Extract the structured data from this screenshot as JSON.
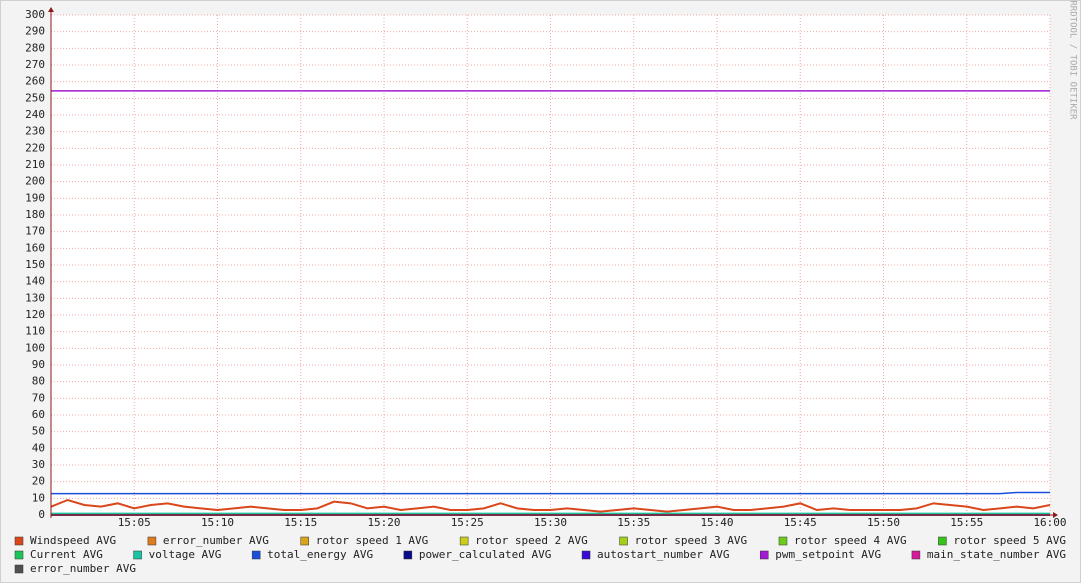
{
  "chart_data": {
    "type": "line",
    "watermark": "RRDTOOL / TOBI OETIKER",
    "xlim": [
      "15:00",
      "16:00"
    ],
    "xticks": [
      "15:05",
      "15:10",
      "15:15",
      "15:20",
      "15:25",
      "15:30",
      "15:35",
      "15:40",
      "15:45",
      "15:50",
      "15:55",
      "16:00"
    ],
    "ylim": [
      0,
      300
    ],
    "yticks": [
      0,
      10,
      20,
      30,
      40,
      50,
      60,
      70,
      80,
      90,
      100,
      110,
      120,
      130,
      140,
      150,
      160,
      170,
      180,
      190,
      200,
      210,
      220,
      230,
      240,
      250,
      260,
      270,
      280,
      290,
      300
    ],
    "grid": true,
    "series": [
      {
        "name": "Windspeed AVG",
        "color": "#d9471a",
        "x": [
          "15:00",
          "15:01",
          "15:02",
          "15:03",
          "15:04",
          "15:05",
          "15:06",
          "15:07",
          "15:08",
          "15:09",
          "15:10",
          "15:11",
          "15:12",
          "15:13",
          "15:14",
          "15:15",
          "15:16",
          "15:17",
          "15:18",
          "15:19",
          "15:20",
          "15:21",
          "15:22",
          "15:23",
          "15:24",
          "15:25",
          "15:26",
          "15:27",
          "15:28",
          "15:29",
          "15:30",
          "15:31",
          "15:32",
          "15:33",
          "15:34",
          "15:35",
          "15:36",
          "15:37",
          "15:38",
          "15:39",
          "15:40",
          "15:41",
          "15:42",
          "15:43",
          "15:44",
          "15:45",
          "15:46",
          "15:47",
          "15:48",
          "15:49",
          "15:50",
          "15:51",
          "15:52",
          "15:53",
          "15:54",
          "15:55",
          "15:56",
          "15:57",
          "15:58",
          "15:59",
          "16:00"
        ],
        "values": [
          5,
          9,
          6,
          5,
          7,
          4,
          6,
          7,
          5,
          4,
          3,
          4,
          5,
          4,
          3,
          3,
          4,
          8,
          7,
          4,
          5,
          3,
          4,
          5,
          3,
          3,
          4,
          7,
          4,
          3,
          3,
          4,
          3,
          2,
          3,
          4,
          3,
          2,
          3,
          4,
          5,
          3,
          3,
          4,
          5,
          7,
          3,
          4,
          3,
          3,
          3,
          3,
          4,
          7,
          6,
          5,
          3,
          4,
          5,
          4,
          6
        ]
      },
      {
        "name": "error_number AVG",
        "color": "#e07a1f",
        "x": [
          "15:00",
          "16:00"
        ],
        "values": [
          0,
          0
        ]
      },
      {
        "name": "rotor speed 1 AVG",
        "color": "#d9a31a",
        "x": [
          "15:00",
          "16:00"
        ],
        "values": [
          0,
          0
        ]
      },
      {
        "name": "rotor speed 2 AVG",
        "color": "#cccc1a",
        "x": [
          "15:00",
          "16:00"
        ],
        "values": [
          0,
          0
        ]
      },
      {
        "name": "rotor speed 3 AVG",
        "color": "#a3d11a",
        "x": [
          "15:00",
          "16:00"
        ],
        "values": [
          0,
          0
        ]
      },
      {
        "name": "rotor speed 4 AVG",
        "color": "#6ccc1a",
        "x": [
          "15:00",
          "16:00"
        ],
        "values": [
          0,
          0
        ]
      },
      {
        "name": "rotor speed 5 AVG",
        "color": "#36c41a",
        "x": [
          "15:00",
          "16:00"
        ],
        "values": [
          0,
          0
        ]
      },
      {
        "name": "Current AVG",
        "color": "#1ac45a",
        "x": [
          "15:00",
          "16:00"
        ],
        "values": [
          0,
          0
        ]
      },
      {
        "name": "voltage AVG",
        "color": "#1ac4a3",
        "x": [
          "15:00",
          "16:00"
        ],
        "values": [
          1,
          1
        ]
      },
      {
        "name": "total_energy AVG",
        "color": "#1a4fd9",
        "x": [
          "15:00",
          "15:57",
          "15:58",
          "16:00"
        ],
        "values": [
          12.8,
          12.8,
          13.5,
          13.5
        ]
      },
      {
        "name": "power_calculated AVG",
        "color": "#0a0a8a",
        "x": [
          "15:00",
          "16:00"
        ],
        "values": [
          0,
          0
        ]
      },
      {
        "name": "autostart_number AVG",
        "color": "#3a0ad4",
        "x": [
          "15:00",
          "16:00"
        ],
        "values": [
          0,
          0
        ]
      },
      {
        "name": "pwm_setpoint AVG",
        "color": "#a31ad4",
        "x": [
          "15:00",
          "16:00"
        ],
        "values": [
          254.5,
          254.5
        ]
      },
      {
        "name": "main_state_number AVG",
        "color": "#d41a9a",
        "x": [
          "15:00",
          "16:00"
        ],
        "values": [
          0,
          0
        ]
      },
      {
        "name": "error_number AVG",
        "color": "#505050",
        "x": [
          "15:00",
          "16:00"
        ],
        "values": [
          0,
          0
        ]
      }
    ]
  }
}
